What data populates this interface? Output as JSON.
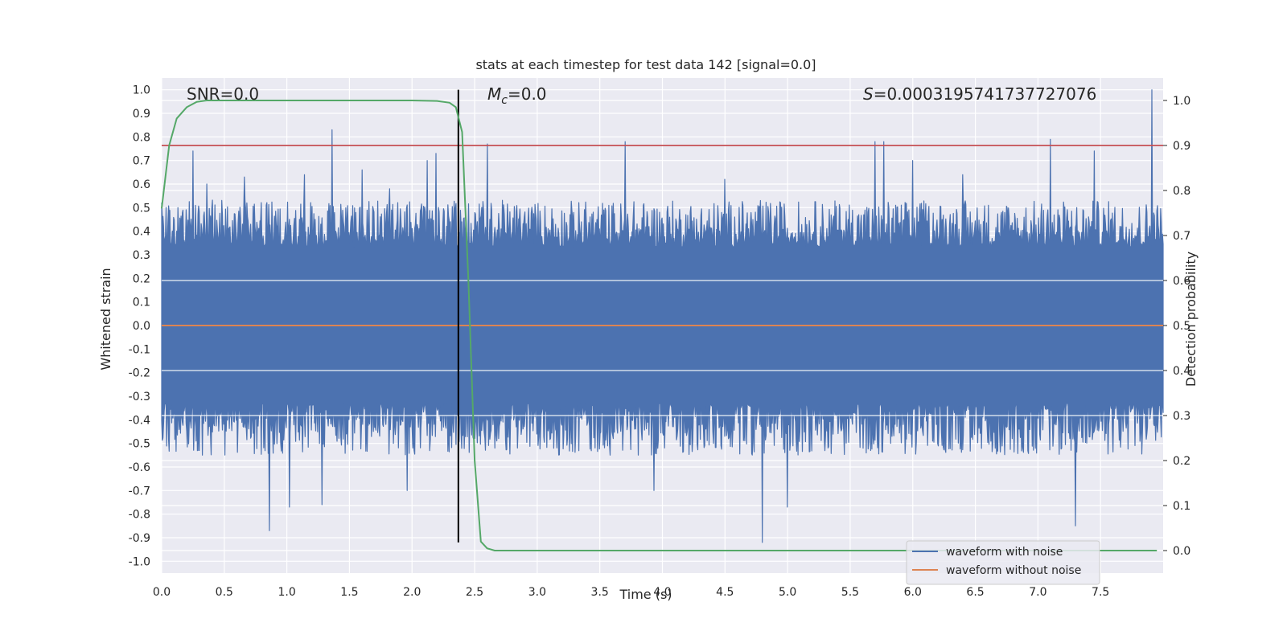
{
  "chart_data": {
    "type": "line",
    "title": "stats at each timestep for test data 142 [signal=0.0]",
    "xlabel": "Time (s)",
    "ylabel": "Whitened strain",
    "y2label": "Detection probability",
    "xlim": [
      0.0,
      8.0
    ],
    "ylim": [
      -1.05,
      1.05
    ],
    "y2lim": [
      -0.05,
      1.05
    ],
    "xticks": [
      "0.0",
      "0.5",
      "1.0",
      "1.5",
      "2.0",
      "2.5",
      "3.0",
      "3.5",
      "4.0",
      "4.5",
      "5.0",
      "5.5",
      "6.0",
      "6.5",
      "7.0",
      "7.5"
    ],
    "yticks": [
      "-1.0",
      "-0.9",
      "-0.8",
      "-0.7",
      "-0.6",
      "-0.5",
      "-0.4",
      "-0.3",
      "-0.2",
      "-0.1",
      "0.0",
      "0.1",
      "0.2",
      "0.3",
      "0.4",
      "0.5",
      "0.6",
      "0.7",
      "0.8",
      "0.9",
      "1.0"
    ],
    "y2ticks": [
      "0.0",
      "0.1",
      "0.2",
      "0.3",
      "0.4",
      "0.5",
      "0.6",
      "0.7",
      "0.8",
      "0.9",
      "1.0"
    ],
    "grid": true,
    "legend_position": "bottom-right",
    "annotations": {
      "snr": "SNR=0.0",
      "mc_symbol": "M",
      "mc_sub": "c",
      "mc_value": "=0.0",
      "s_symbol": "S",
      "s_value": "=0.0003195741737727076"
    },
    "threshold": {
      "axis": "right",
      "value": 0.9,
      "color": "#c44e52"
    },
    "vline": {
      "x": 2.37,
      "ymin": -0.92,
      "ymax": 1.0,
      "color": "#000000"
    },
    "series": [
      {
        "name": "waveform with noise",
        "axis": "left",
        "color": "#4c72b0",
        "envelope": {
          "upper_base": 0.37,
          "upper_spread": 0.09,
          "lower_base": -0.37,
          "lower_spread": 0.1,
          "samples": 1600,
          "peaks": [
            [
              0.06,
              0.48
            ],
            [
              0.25,
              0.74
            ],
            [
              0.36,
              0.6
            ],
            [
              0.66,
              0.63
            ],
            [
              0.86,
              -0.87
            ],
            [
              1.02,
              -0.77
            ],
            [
              1.14,
              0.64
            ],
            [
              1.36,
              0.83
            ],
            [
              1.28,
              -0.76
            ],
            [
              1.6,
              0.66
            ],
            [
              1.82,
              0.58
            ],
            [
              1.96,
              -0.7
            ],
            [
              2.12,
              0.7
            ],
            [
              2.19,
              0.73
            ],
            [
              2.6,
              0.77
            ],
            [
              3.7,
              0.78
            ],
            [
              3.93,
              -0.7
            ],
            [
              4.5,
              0.62
            ],
            [
              4.8,
              -0.92
            ],
            [
              5.0,
              -0.77
            ],
            [
              5.7,
              0.78
            ],
            [
              5.77,
              0.78
            ],
            [
              6.0,
              0.7
            ],
            [
              6.4,
              0.64
            ],
            [
              7.1,
              0.79
            ],
            [
              7.3,
              -0.85
            ],
            [
              7.45,
              0.74
            ],
            [
              7.91,
              1.0
            ]
          ]
        }
      },
      {
        "name": "waveform without noise",
        "axis": "left",
        "color": "#dd8452",
        "x": [
          0.0,
          8.0
        ],
        "y": [
          0.0,
          0.0
        ]
      },
      {
        "name": "",
        "axis": "right",
        "color": "#55a868",
        "x": [
          0.0,
          0.06,
          0.12,
          0.2,
          0.28,
          0.36,
          0.5,
          1.0,
          1.5,
          2.0,
          2.2,
          2.3,
          2.35,
          2.4,
          2.45,
          2.5,
          2.55,
          2.6,
          2.66,
          3.0,
          5.0,
          7.95
        ],
        "y": [
          0.76,
          0.9,
          0.96,
          0.985,
          0.997,
          1.0,
          1.0,
          1.0,
          1.0,
          1.0,
          0.999,
          0.995,
          0.985,
          0.93,
          0.6,
          0.2,
          0.02,
          0.005,
          0.0,
          0.0,
          0.0,
          0.0
        ]
      }
    ]
  }
}
